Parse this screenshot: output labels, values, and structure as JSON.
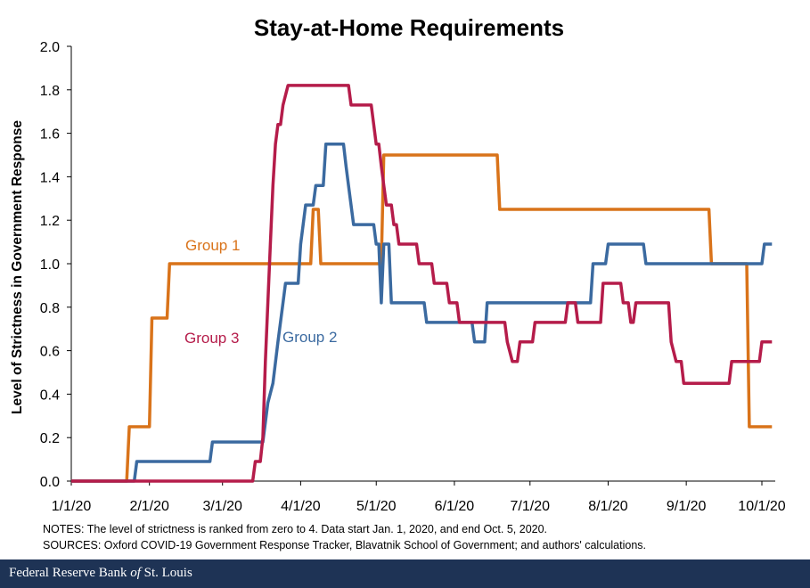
{
  "chart_data": {
    "type": "line",
    "title": "Stay-at-Home Requirements",
    "xlabel": "",
    "ylabel": "Level of Strictness in Government Response",
    "ylim": [
      0,
      2.0
    ],
    "yticks": [
      "0.0",
      "0.2",
      "0.4",
      "0.6",
      "0.8",
      "1.0",
      "1.2",
      "1.4",
      "1.6",
      "1.8",
      "2.0"
    ],
    "xticks": [
      "1/1/20",
      "2/1/20",
      "3/1/20",
      "4/1/20",
      "5/1/20",
      "6/1/20",
      "7/1/20",
      "8/1/20",
      "9/1/20",
      "10/1/20"
    ],
    "grid": false,
    "legend": "inline labels",
    "series": [
      {
        "name": "Group 1",
        "color": "#d9731a",
        "points": [
          [
            "2020-01-01",
            0
          ],
          [
            "2020-01-23",
            0
          ],
          [
            "2020-01-24",
            0.25
          ],
          [
            "2020-02-01",
            0.25
          ],
          [
            "2020-02-02",
            0.75
          ],
          [
            "2020-02-08",
            0.75
          ],
          [
            "2020-02-09",
            1.0
          ],
          [
            "2020-04-05",
            1.0
          ],
          [
            "2020-04-06",
            1.25
          ],
          [
            "2020-04-08",
            1.25
          ],
          [
            "2020-04-09",
            1.0
          ],
          [
            "2020-05-03",
            1.0
          ],
          [
            "2020-05-04",
            1.5
          ],
          [
            "2020-06-18",
            1.5
          ],
          [
            "2020-06-19",
            1.25
          ],
          [
            "2020-09-10",
            1.25
          ],
          [
            "2020-09-11",
            1.0
          ],
          [
            "2020-09-25",
            1.0
          ],
          [
            "2020-09-26",
            0.25
          ],
          [
            "2020-10-05",
            0.25
          ]
        ]
      },
      {
        "name": "Group 2",
        "color": "#3b6aa0",
        "points": [
          [
            "2020-01-01",
            0
          ],
          [
            "2020-01-26",
            0
          ],
          [
            "2020-01-27",
            0.09
          ],
          [
            "2020-02-25",
            0.09
          ],
          [
            "2020-02-26",
            0.18
          ],
          [
            "2020-03-17",
            0.18
          ],
          [
            "2020-03-18",
            0.27
          ],
          [
            "2020-03-19",
            0.36
          ],
          [
            "2020-03-21",
            0.45
          ],
          [
            "2020-03-23",
            0.64
          ],
          [
            "2020-03-25",
            0.82
          ],
          [
            "2020-03-26",
            0.91
          ],
          [
            "2020-03-31",
            0.91
          ],
          [
            "2020-04-01",
            1.09
          ],
          [
            "2020-04-02",
            1.18
          ],
          [
            "2020-04-03",
            1.27
          ],
          [
            "2020-04-06",
            1.27
          ],
          [
            "2020-04-07",
            1.36
          ],
          [
            "2020-04-10",
            1.36
          ],
          [
            "2020-04-11",
            1.55
          ],
          [
            "2020-04-18",
            1.55
          ],
          [
            "2020-04-19",
            1.45
          ],
          [
            "2020-04-20",
            1.36
          ],
          [
            "2020-04-22",
            1.18
          ],
          [
            "2020-04-30",
            1.18
          ],
          [
            "2020-05-01",
            1.09
          ],
          [
            "2020-05-02",
            1.09
          ],
          [
            "2020-05-03",
            0.82
          ],
          [
            "2020-05-04",
            1.09
          ],
          [
            "2020-05-06",
            1.09
          ],
          [
            "2020-05-07",
            0.82
          ],
          [
            "2020-05-20",
            0.82
          ],
          [
            "2020-05-21",
            0.73
          ],
          [
            "2020-06-08",
            0.73
          ],
          [
            "2020-06-09",
            0.64
          ],
          [
            "2020-06-13",
            0.64
          ],
          [
            "2020-06-14",
            0.82
          ],
          [
            "2020-07-25",
            0.82
          ],
          [
            "2020-07-26",
            1.0
          ],
          [
            "2020-07-31",
            1.0
          ],
          [
            "2020-08-01",
            1.09
          ],
          [
            "2020-08-15",
            1.09
          ],
          [
            "2020-08-16",
            1.0
          ],
          [
            "2020-10-01",
            1.0
          ],
          [
            "2020-10-02",
            1.09
          ],
          [
            "2020-10-05",
            1.09
          ]
        ]
      },
      {
        "name": "Group 3",
        "color": "#b51c4a",
        "points": [
          [
            "2020-01-01",
            0
          ],
          [
            "2020-03-13",
            0
          ],
          [
            "2020-03-14",
            0.09
          ],
          [
            "2020-03-16",
            0.09
          ],
          [
            "2020-03-17",
            0.2
          ],
          [
            "2020-03-18",
            0.55
          ],
          [
            "2020-03-19",
            0.82
          ],
          [
            "2020-03-20",
            1.09
          ],
          [
            "2020-03-21",
            1.36
          ],
          [
            "2020-03-22",
            1.55
          ],
          [
            "2020-03-23",
            1.64
          ],
          [
            "2020-03-24",
            1.64
          ],
          [
            "2020-03-25",
            1.73
          ],
          [
            "2020-03-27",
            1.82
          ],
          [
            "2020-04-20",
            1.82
          ],
          [
            "2020-04-21",
            1.73
          ],
          [
            "2020-04-29",
            1.73
          ],
          [
            "2020-04-30",
            1.64
          ],
          [
            "2020-05-01",
            1.55
          ],
          [
            "2020-05-02",
            1.55
          ],
          [
            "2020-05-03",
            1.45
          ],
          [
            "2020-05-04",
            1.36
          ],
          [
            "2020-05-05",
            1.27
          ],
          [
            "2020-05-07",
            1.27
          ],
          [
            "2020-05-08",
            1.18
          ],
          [
            "2020-05-09",
            1.18
          ],
          [
            "2020-05-10",
            1.09
          ],
          [
            "2020-05-17",
            1.09
          ],
          [
            "2020-05-18",
            1.0
          ],
          [
            "2020-05-23",
            1.0
          ],
          [
            "2020-05-24",
            0.91
          ],
          [
            "2020-05-29",
            0.91
          ],
          [
            "2020-05-30",
            0.82
          ],
          [
            "2020-06-02",
            0.82
          ],
          [
            "2020-06-03",
            0.73
          ],
          [
            "2020-06-21",
            0.73
          ],
          [
            "2020-06-22",
            0.64
          ],
          [
            "2020-06-24",
            0.55
          ],
          [
            "2020-06-26",
            0.55
          ],
          [
            "2020-06-27",
            0.64
          ],
          [
            "2020-07-02",
            0.64
          ],
          [
            "2020-07-03",
            0.73
          ],
          [
            "2020-07-15",
            0.73
          ],
          [
            "2020-07-16",
            0.82
          ],
          [
            "2020-07-19",
            0.82
          ],
          [
            "2020-07-20",
            0.73
          ],
          [
            "2020-07-29",
            0.73
          ],
          [
            "2020-07-30",
            0.91
          ],
          [
            "2020-08-06",
            0.91
          ],
          [
            "2020-08-07",
            0.82
          ],
          [
            "2020-08-09",
            0.82
          ],
          [
            "2020-08-10",
            0.73
          ],
          [
            "2020-08-11",
            0.73
          ],
          [
            "2020-08-12",
            0.82
          ],
          [
            "2020-08-25",
            0.82
          ],
          [
            "2020-08-26",
            0.64
          ],
          [
            "2020-08-28",
            0.55
          ],
          [
            "2020-08-30",
            0.55
          ],
          [
            "2020-08-31",
            0.45
          ],
          [
            "2020-09-18",
            0.45
          ],
          [
            "2020-09-19",
            0.55
          ],
          [
            "2020-09-30",
            0.55
          ],
          [
            "2020-10-01",
            0.64
          ],
          [
            "2020-10-05",
            0.64
          ]
        ]
      }
    ]
  },
  "notes": {
    "line1": "NOTES: The level of strictness is ranked from zero to 4. Data start Jan. 1, 2020, and end Oct. 5, 2020.",
    "line2": "SOURCES: Oxford COVID-19 Government  Response Tracker, Blavatnik School of Government;  and authors' calculations."
  },
  "footer": {
    "prefix": "Federal Reserve Bank ",
    "italic": "of",
    "suffix": " St. Louis"
  }
}
